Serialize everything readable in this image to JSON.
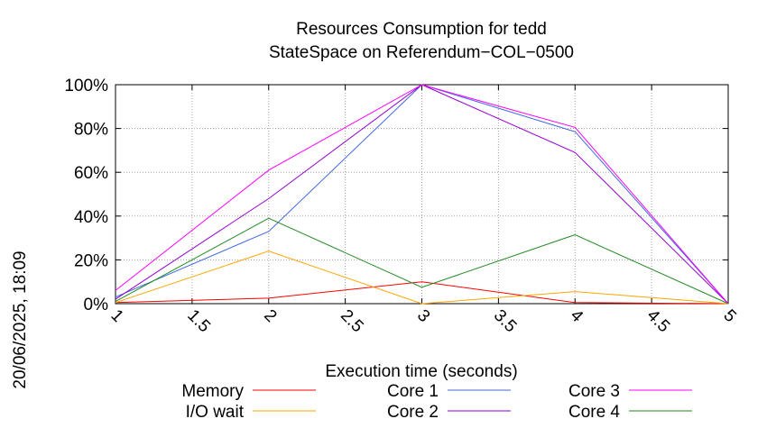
{
  "chart_data": {
    "type": "line",
    "title": "Resources Consumption for tedd",
    "subtitle": "StateSpace on Referendum−COL−0500",
    "xlabel": "Execution time (seconds)",
    "ylabel": "",
    "side_label": "20/06/2025, 18:09",
    "xlim": [
      1,
      5
    ],
    "ylim": [
      0,
      100
    ],
    "x_ticks": [
      "1",
      "1.5",
      "2",
      "2.5",
      "3",
      "3.5",
      "4",
      "4.5",
      "5"
    ],
    "y_ticks": [
      "0%",
      "20%",
      "40%",
      "60%",
      "80%",
      "100%"
    ],
    "grid": true,
    "legend_position": "bottom",
    "x": [
      1,
      2,
      3,
      4,
      5
    ],
    "series": [
      {
        "name": "Memory",
        "color": "#ff0000",
        "values": [
          0.5,
          2.5,
          10,
          0.5,
          0
        ]
      },
      {
        "name": "I/O wait",
        "color": "#ffa500",
        "values": [
          0.5,
          24,
          0,
          5.5,
          0
        ]
      },
      {
        "name": "Core 1",
        "color": "#4169e1",
        "values": [
          3,
          33,
          100,
          78.5,
          0
        ]
      },
      {
        "name": "Core 2",
        "color": "#9400d3",
        "values": [
          2,
          48,
          100,
          69,
          0
        ]
      },
      {
        "name": "Core 3",
        "color": "#ff00ff",
        "values": [
          6,
          61,
          100,
          80.5,
          0
        ]
      },
      {
        "name": "Core 4",
        "color": "#228b22",
        "values": [
          1,
          39,
          7.5,
          31.5,
          0
        ]
      }
    ]
  }
}
